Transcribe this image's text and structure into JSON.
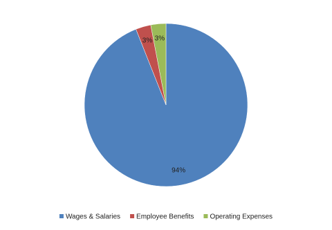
{
  "chart_data": {
    "type": "pie",
    "categories": [
      "Wages & Salaries",
      "Employee Benefits",
      "Operating Expenses"
    ],
    "values": [
      94,
      3,
      3
    ],
    "value_labels": [
      "94%",
      "3%",
      "3%"
    ],
    "colors": [
      "#4f81bd",
      "#c0504d",
      "#9bbb59"
    ],
    "legend": "bottom"
  }
}
